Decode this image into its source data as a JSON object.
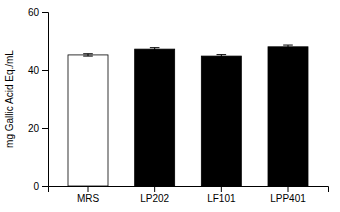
{
  "chart_data": {
    "type": "bar",
    "categories": [
      "MRS",
      "LP202",
      "LF101",
      "LPP401"
    ],
    "values": [
      45.2,
      47.2,
      44.8,
      48.0
    ],
    "errors": [
      0.4,
      0.5,
      0.5,
      0.6
    ],
    "colors": [
      "#ffffff",
      "#000000",
      "#000000",
      "#000000"
    ],
    "ylabel": "mg Gallic Acid Eq./mL",
    "ylim": [
      0,
      60
    ],
    "yticks": [
      0,
      20,
      40,
      60
    ],
    "grid": false
  }
}
